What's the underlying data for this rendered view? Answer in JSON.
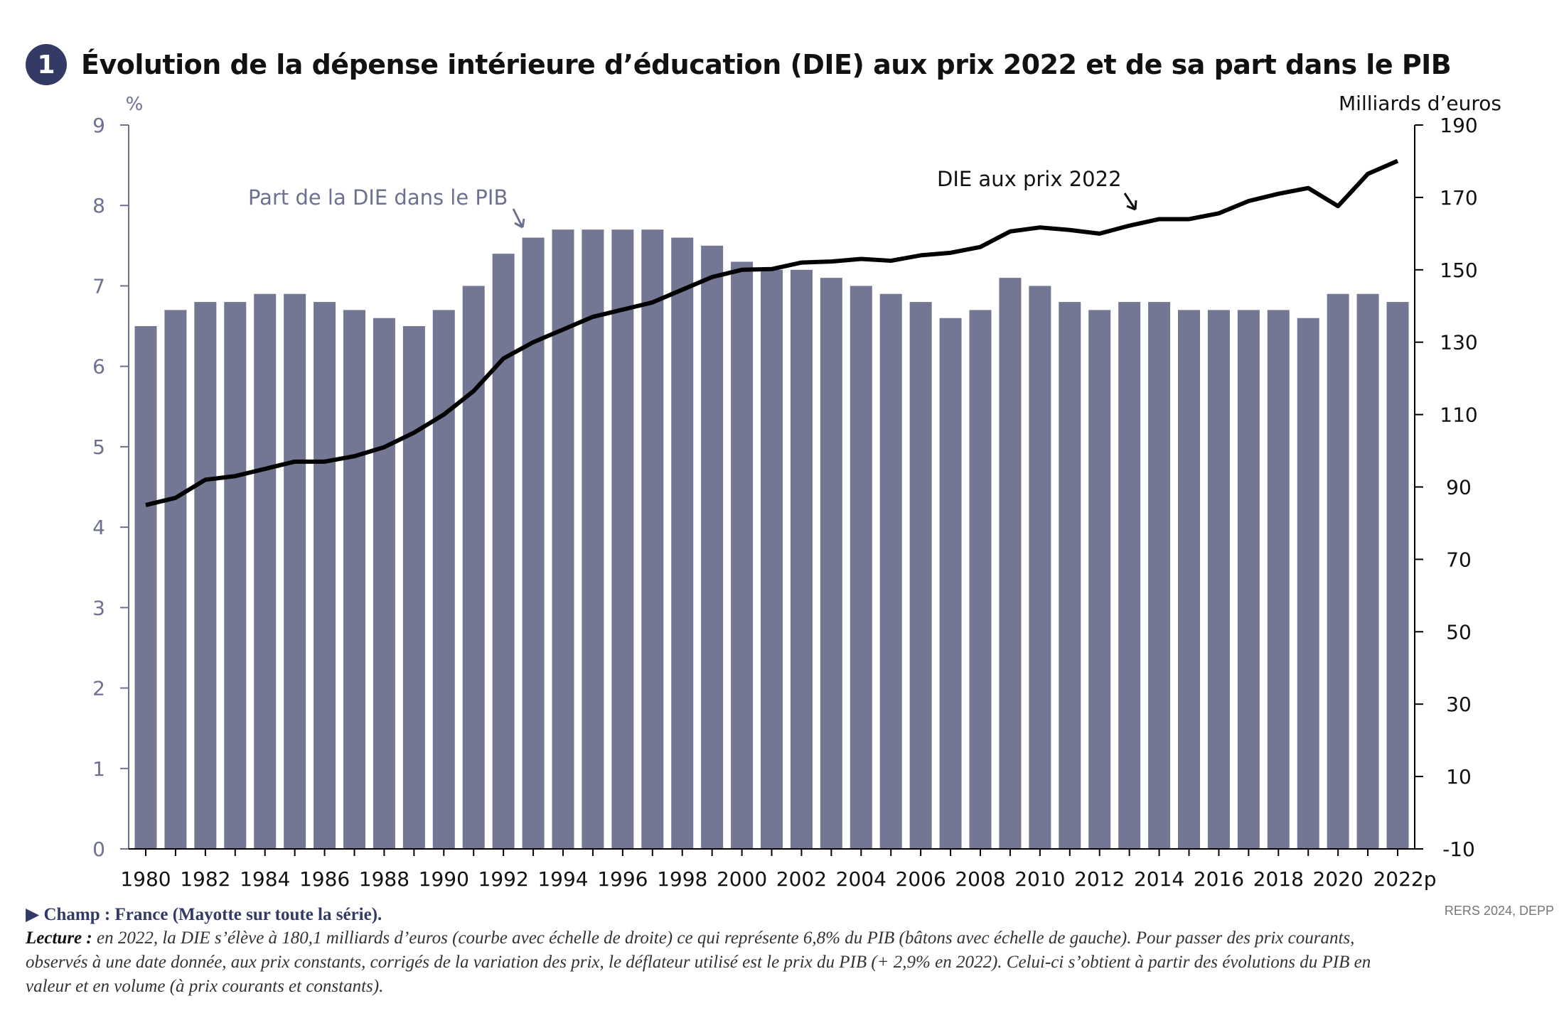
{
  "figure": {
    "number": "1",
    "title": "Évolution de la dépense intérieure d’éducation (DIE) aux prix 2022 et de sa part dans le PIB",
    "champ": "▶  Champ : France (Mayotte sur toute la série).",
    "lecture_label": "Lecture :",
    "lecture_text": " en 2022, la DIE s’élève à 180,1 milliards d’euros (courbe avec échelle de droite) ce qui représente 6,8% du PIB (bâtons avec échelle de gauche). Pour passer des prix courants, observés à une date donnée, aux prix constants, corrigés de la variation des prix, le déflateur utilisé est le prix du PIB (+ 2,9% en 2022). Celui-ci s’obtient à partir des évolutions du PIB en valeur et en volume (à prix courants et constants).",
    "source": "RERS 2024, DEPP"
  },
  "colors": {
    "bar": "#737793",
    "line": "#000000",
    "axis": "#6e7090",
    "badge": "#333a66"
  },
  "chart_data": {
    "type": "bar",
    "title": "Évolution de la dépense intérieure d’éducation (DIE) aux prix 2022 et de sa part dans le PIB",
    "ylabel": "%",
    "y2label": "Milliards d’euros",
    "ylim": [
      0,
      9
    ],
    "y2lim": [
      -10,
      190
    ],
    "yticks": [
      0,
      1,
      2,
      3,
      4,
      5,
      6,
      7,
      8,
      9
    ],
    "y2ticks": [
      -10,
      10,
      30,
      50,
      70,
      90,
      110,
      130,
      150,
      170,
      190
    ],
    "categories": [
      1980,
      1981,
      1982,
      1983,
      1984,
      1985,
      1986,
      1987,
      1988,
      1989,
      1990,
      1991,
      1992,
      1993,
      1994,
      1995,
      1996,
      1997,
      1998,
      1999,
      2000,
      2001,
      2002,
      2003,
      2004,
      2005,
      2006,
      2007,
      2008,
      2009,
      2010,
      2011,
      2012,
      2013,
      2014,
      2015,
      2016,
      2017,
      2018,
      2019,
      2020,
      2021,
      2022
    ],
    "xtick_labels": [
      "1980",
      "1982",
      "1984",
      "1986",
      "1988",
      "1990",
      "1992",
      "1994",
      "1996",
      "1998",
      "2000",
      "2002",
      "2004",
      "2006",
      "2008",
      "2010",
      "2012",
      "2014",
      "2016",
      "2018",
      "2020",
      "2022p"
    ],
    "series": [
      {
        "name": "Part de la DIE dans le PIB",
        "type": "bar",
        "axis": "left",
        "values": [
          6.5,
          6.7,
          6.8,
          6.8,
          6.9,
          6.9,
          6.8,
          6.7,
          6.6,
          6.5,
          6.7,
          7.0,
          7.4,
          7.6,
          7.7,
          7.7,
          7.7,
          7.7,
          7.6,
          7.5,
          7.3,
          7.2,
          7.2,
          7.1,
          7.0,
          6.9,
          6.8,
          6.6,
          6.7,
          7.1,
          7.0,
          6.8,
          6.7,
          6.8,
          6.8,
          6.7,
          6.7,
          6.7,
          6.7,
          6.6,
          6.9,
          6.9,
          6.8
        ]
      },
      {
        "name": "DIE aux prix 2022",
        "type": "line",
        "axis": "right",
        "values": [
          85,
          87,
          92,
          93,
          95,
          97,
          97,
          98.5,
          101,
          105,
          110,
          116.5,
          125.5,
          130,
          133.5,
          137,
          139,
          141,
          144.5,
          148,
          150,
          150.2,
          152,
          152.3,
          153,
          152.5,
          154,
          154.7,
          156.3,
          160.6,
          161.7,
          161,
          160,
          162.2,
          164,
          164,
          165.6,
          169,
          171,
          172.6,
          167.6,
          176.5,
          180.1
        ]
      }
    ],
    "annotations": [
      "Part de la DIE dans le PIB",
      "DIE aux prix 2022"
    ],
    "grid": false
  }
}
